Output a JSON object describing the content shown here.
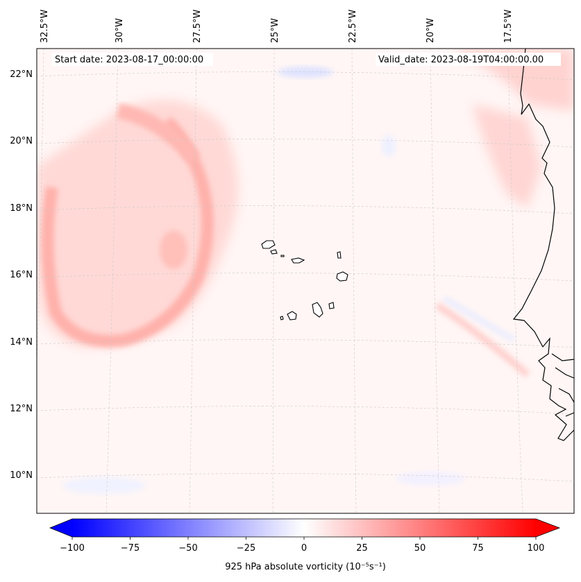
{
  "map": {
    "start_date": "Start date: 2023-08-17_00:00:00",
    "valid_date": "Valid_date: 2023-08-19T04:00:00.00",
    "lon_labels": [
      "32.5°W",
      "30°W",
      "27.5°W",
      "25°W",
      "22.5°W",
      "20°W",
      "17.5°W"
    ],
    "lat_labels": [
      "22°N",
      "20°N",
      "18°N",
      "16°N",
      "14°N",
      "12°N",
      "10°N"
    ]
  },
  "colorbar": {
    "label": "925 hPa absolute vorticity (10⁻⁵s⁻¹)",
    "ticks": [
      "−100",
      "−75",
      "−50",
      "−25",
      "0",
      "25",
      "50",
      "75",
      "100"
    ]
  },
  "colors": {
    "negative": "#0000ff",
    "zero": "#ffffff",
    "positive": "#ff0000",
    "coast": "#000000"
  }
}
